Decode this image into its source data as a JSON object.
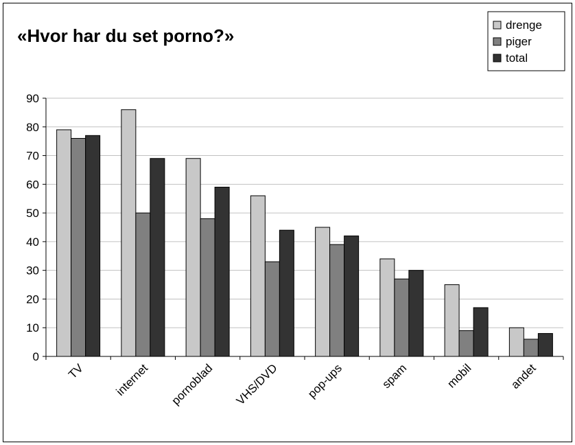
{
  "chart_data": {
    "type": "bar",
    "title": "«Hvor har du set porno?»",
    "xlabel": "",
    "ylabel": "",
    "ylim": [
      0,
      90
    ],
    "yticks": [
      0,
      10,
      20,
      30,
      40,
      50,
      60,
      70,
      80,
      90
    ],
    "grid": true,
    "legend_position": "top-right",
    "categories": [
      "TV",
      "internet",
      "pornoblad",
      "VHS/DVD",
      "pop-ups",
      "spam",
      "mobil",
      "andet"
    ],
    "series": [
      {
        "name": "drenge",
        "color": "#c8c8c8",
        "values": [
          79,
          86,
          69,
          56,
          45,
          34,
          25,
          10
        ]
      },
      {
        "name": "piger",
        "color": "#808080",
        "values": [
          76,
          50,
          48,
          33,
          39,
          27,
          9,
          6
        ]
      },
      {
        "name": "total",
        "color": "#333333",
        "values": [
          77,
          69,
          59,
          44,
          42,
          30,
          17,
          8
        ]
      }
    ]
  }
}
